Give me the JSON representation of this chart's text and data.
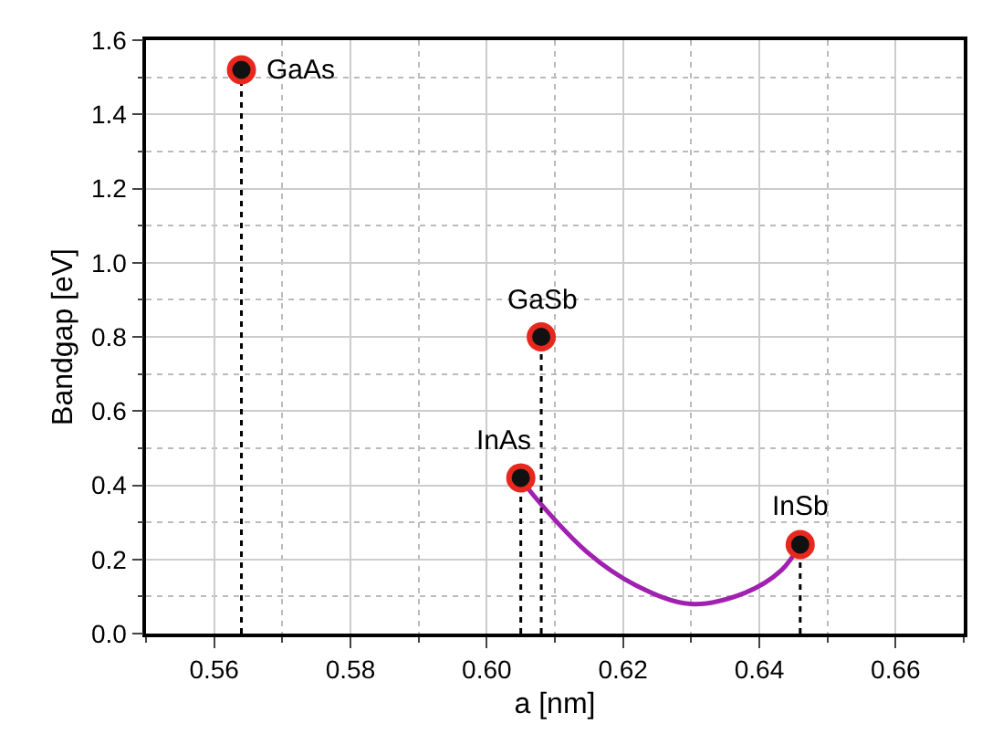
{
  "chart_data": {
    "type": "scatter",
    "xlabel": "a [nm]",
    "ylabel": "Bandgap [eV]",
    "xlim": [
      0.55,
      0.67
    ],
    "ylim": [
      0,
      1.6
    ],
    "xticks": [
      {
        "value": 0.55,
        "label": null
      },
      0.56,
      {
        "value": 0.57,
        "label": null
      },
      0.58,
      {
        "value": 0.59,
        "label": null
      },
      {
        "value": 0.6,
        "label": "0.60"
      },
      {
        "value": 0.61,
        "label": null
      },
      0.62,
      {
        "value": 0.63,
        "label": null
      },
      0.64,
      {
        "value": 0.65,
        "label": null
      },
      0.66,
      {
        "value": 0.67,
        "label": null
      }
    ],
    "yticks": [
      {
        "value": 0,
        "label": "0.0"
      },
      {
        "value": 0.1,
        "label": null
      },
      0.2,
      {
        "value": 0.3,
        "label": null
      },
      0.4,
      {
        "value": 0.5,
        "label": null
      },
      0.6,
      {
        "value": 0.7,
        "label": null
      },
      0.8,
      {
        "value": 0.9,
        "label": null
      },
      {
        "value": 1,
        "label": "1.0"
      },
      {
        "value": 1.1,
        "label": null
      },
      1.2,
      {
        "value": 1.3,
        "label": null
      },
      1.4,
      {
        "value": 1.5,
        "label": null
      },
      1.6
    ],
    "grid": true,
    "series": [
      {
        "type": "line",
        "color": "#a020b0",
        "marker": "none",
        "line_style": "solid",
        "x": [
          0.605,
          0.6061,
          0.6147,
          0.6219,
          0.6299,
          0.6379,
          0.6432,
          0.646
        ],
        "values": [
          0.42,
          0.39,
          0.22,
          0.13,
          0.08,
          0.11,
          0.17,
          0.24
        ]
      },
      {
        "color": "#111111",
        "marker": "circle",
        "x": [
          0.564,
          0.608,
          0.605,
          0.646
        ],
        "values": [
          1.52,
          0.8,
          0.42,
          0.24
        ],
        "errors": [
          [
            0,
            1.52
          ],
          [
            0,
            0.8
          ],
          [
            0,
            0.42
          ],
          [
            0,
            0.24
          ]
        ]
      }
    ],
    "annotations": [
      {
        "text": "GaAs",
        "x": 0.564,
        "y": 1.52
      },
      {
        "text": "GaSb",
        "x": 0.608,
        "y": 0.8
      },
      {
        "text": "InAs",
        "x": 0.605,
        "y": 0.42
      },
      {
        "text": "InSb",
        "x": 0.646,
        "y": 0.24
      }
    ]
  }
}
